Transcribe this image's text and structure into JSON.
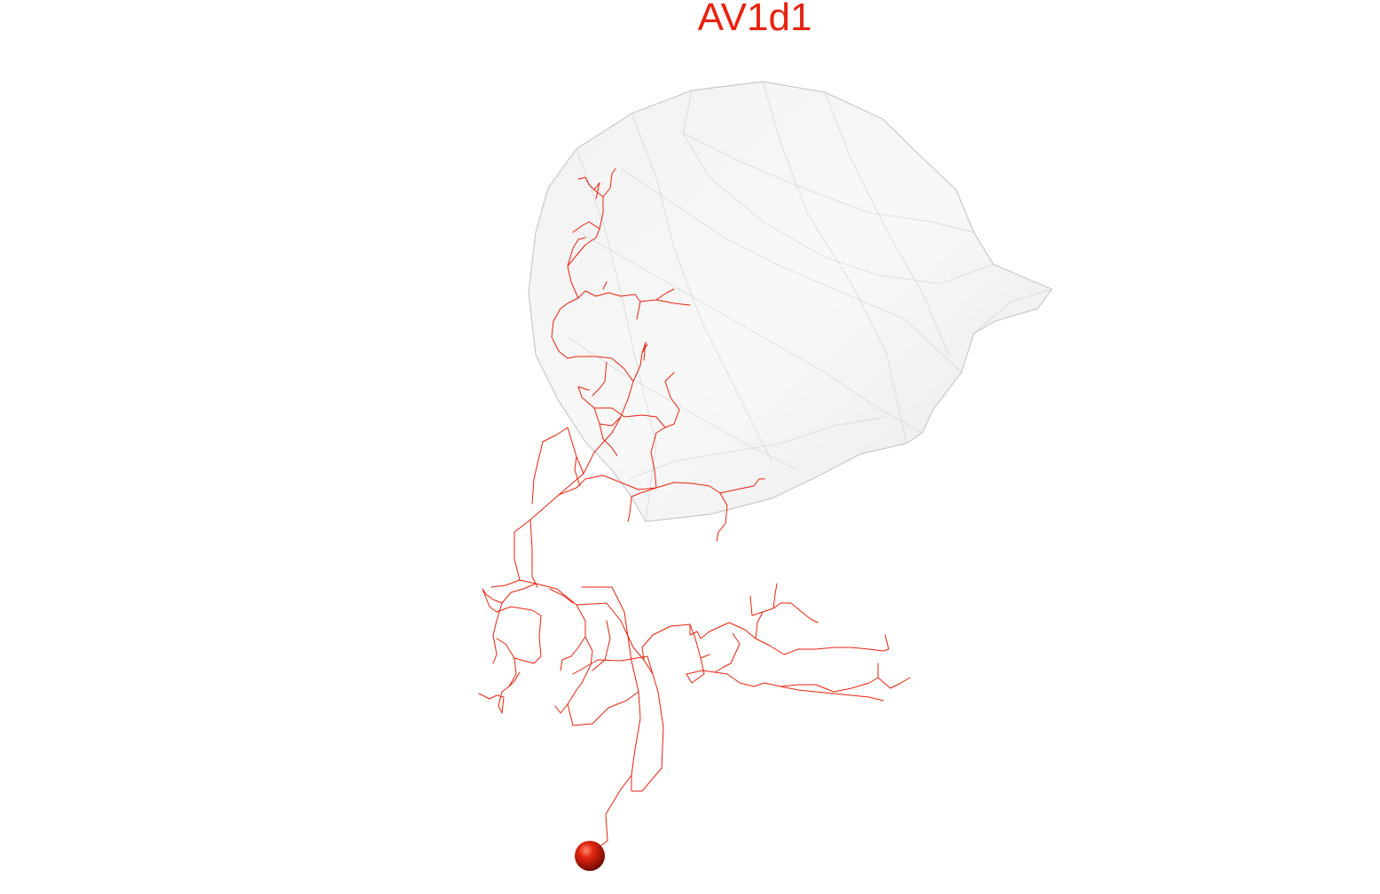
{
  "figure": {
    "title": "AV1d1",
    "title_color": "#e8220d",
    "neuron_color": "#e8220d",
    "neuropil_fill": "#e9e9e9",
    "neuropil_edge": "#c9c9c9",
    "soma_color": "#d0180a"
  }
}
